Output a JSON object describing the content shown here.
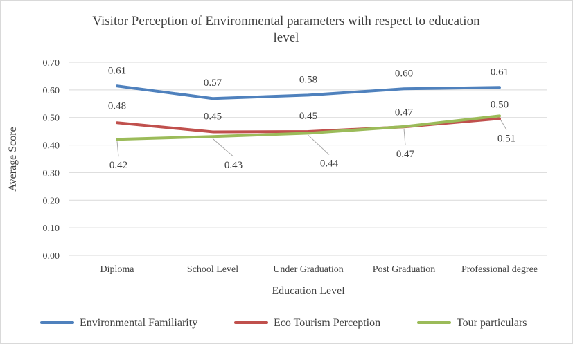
{
  "chart_data": {
    "type": "line",
    "title_line1": "Visitor Perception of Environmental parameters with respect to education",
    "title_line2": "level",
    "xlabel": "Education Level",
    "ylabel": "Average Score",
    "categories": [
      "Diploma",
      "School Level",
      "Under Graduation",
      "Post Graduation",
      "Professional degree"
    ],
    "ylim": [
      0,
      0.7
    ],
    "yticks": [
      "0.00",
      "0.10",
      "0.20",
      "0.30",
      "0.40",
      "0.50",
      "0.60",
      "0.70"
    ],
    "grid": true,
    "legend_position": "bottom",
    "series": [
      {
        "name": "Environmental Familiarity",
        "color": "#4f81bd",
        "values": [
          0.614,
          0.569,
          0.581,
          0.604,
          0.609
        ],
        "labels": [
          "0.61",
          "0.57",
          "0.58",
          "0.60",
          "0.61"
        ]
      },
      {
        "name": "Eco Tourism Perception",
        "color": "#c0504d",
        "values": [
          0.481,
          0.448,
          0.449,
          0.466,
          0.496
        ],
        "labels": [
          "0.48",
          "0.45",
          "0.45",
          "0.47",
          "0.50"
        ]
      },
      {
        "name": "Tour particulars",
        "color": "#9bbb59",
        "values": [
          0.421,
          0.431,
          0.443,
          0.467,
          0.506
        ],
        "labels": [
          "0.42",
          "0.43",
          "0.44",
          "0.47",
          "0.51"
        ]
      }
    ]
  }
}
